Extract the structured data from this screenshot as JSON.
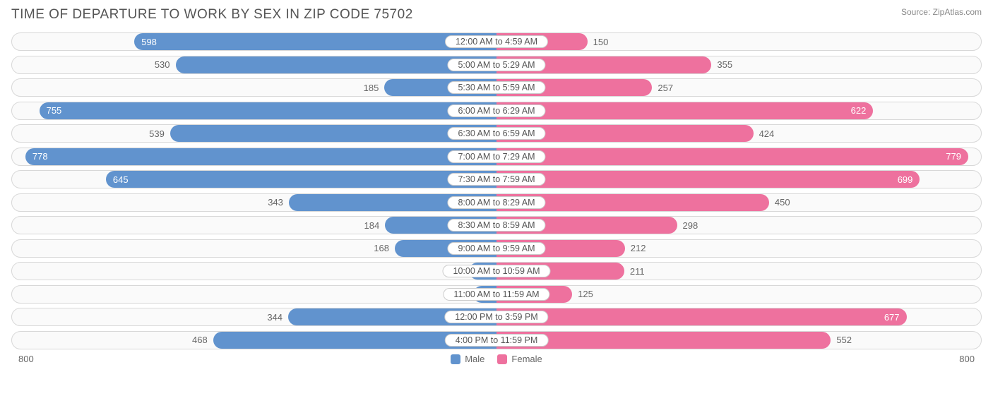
{
  "title": "TIME OF DEPARTURE TO WORK BY SEX IN ZIP CODE 75702",
  "source": "Source: ZipAtlas.com",
  "chart": {
    "type": "diverging-bar",
    "max": 800,
    "axis_left_label": "800",
    "axis_right_label": "800",
    "row_bg": "#fafafa",
    "row_border": "#d8d8d8",
    "colors": {
      "male": "#6193ce",
      "female": "#ee719e"
    },
    "inside_threshold": 560,
    "legend": [
      {
        "label": "Male",
        "color": "#6193ce"
      },
      {
        "label": "Female",
        "color": "#ee719e"
      }
    ],
    "rows": [
      {
        "label": "12:00 AM to 4:59 AM",
        "male": 598,
        "female": 150
      },
      {
        "label": "5:00 AM to 5:29 AM",
        "male": 530,
        "female": 355
      },
      {
        "label": "5:30 AM to 5:59 AM",
        "male": 185,
        "female": 257
      },
      {
        "label": "6:00 AM to 6:29 AM",
        "male": 755,
        "female": 622
      },
      {
        "label": "6:30 AM to 6:59 AM",
        "male": 539,
        "female": 424
      },
      {
        "label": "7:00 AM to 7:29 AM",
        "male": 778,
        "female": 779
      },
      {
        "label": "7:30 AM to 7:59 AM",
        "male": 645,
        "female": 699
      },
      {
        "label": "8:00 AM to 8:29 AM",
        "male": 343,
        "female": 450
      },
      {
        "label": "8:30 AM to 8:59 AM",
        "male": 184,
        "female": 298
      },
      {
        "label": "9:00 AM to 9:59 AM",
        "male": 168,
        "female": 212
      },
      {
        "label": "10:00 AM to 10:59 AM",
        "male": 46,
        "female": 211
      },
      {
        "label": "11:00 AM to 11:59 AM",
        "male": 38,
        "female": 125
      },
      {
        "label": "12:00 PM to 3:59 PM",
        "male": 344,
        "female": 677
      },
      {
        "label": "4:00 PM to 11:59 PM",
        "male": 468,
        "female": 552
      }
    ]
  }
}
